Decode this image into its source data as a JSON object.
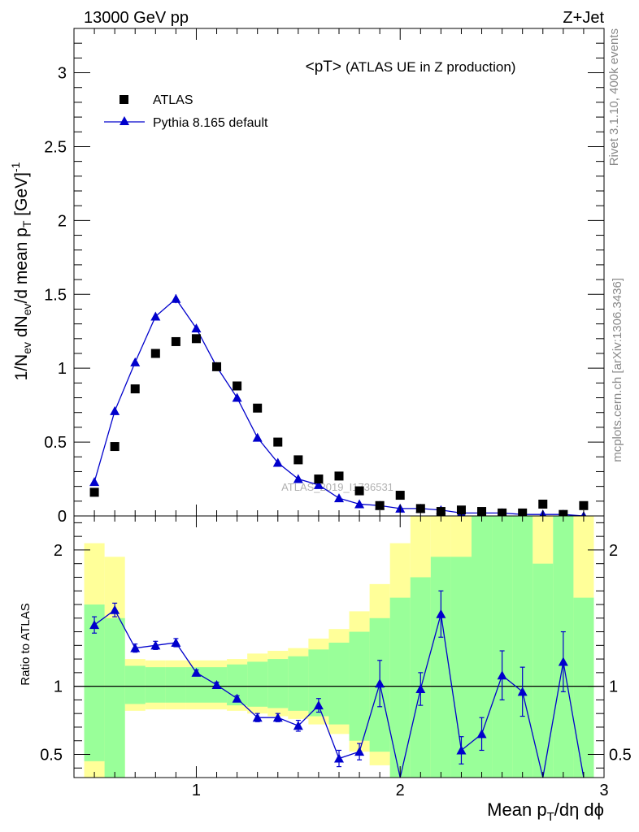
{
  "header": {
    "left": "13000 GeV pp",
    "right": "Z+Jet"
  },
  "side": {
    "rivet": "Rivet 3.1.10,  400k events",
    "mcplots": "mcplots.cern.ch [arXiv:1306.3436]"
  },
  "colors": {
    "mc": "#0000cc",
    "data": "#000000",
    "band_inner": "#99ff99",
    "band_outer": "#ffff99"
  },
  "chart_data": {
    "type": "scatter",
    "title": "<pT>",
    "subtitle": "(ATLAS UE in Z production)",
    "watermark": "ATLAS_2019_I1736531",
    "xlabel_parts": [
      "Mean p",
      "T",
      "/dη dϕ"
    ],
    "ylabel_parts": [
      "1/N",
      "ev",
      " dN",
      "ev",
      "/d mean p",
      "T",
      " [GeV]",
      "-1"
    ],
    "xlim": [
      0.4,
      3.0
    ],
    "ylim": [
      0,
      3.3
    ],
    "x_ticks": [
      "1",
      "2",
      "3"
    ],
    "y_ticks": [
      "0",
      "0.5",
      "1",
      "1.5",
      "2",
      "2.5",
      "3"
    ],
    "legend": {
      "position": "top-left",
      "entries": [
        "ATLAS",
        "Pythia 8.165 default"
      ]
    },
    "x": [
      0.5,
      0.6,
      0.7,
      0.8,
      0.9,
      1.0,
      1.1,
      1.2,
      1.3,
      1.4,
      1.5,
      1.6,
      1.7,
      1.8,
      1.9,
      2.0,
      2.1,
      2.2,
      2.3,
      2.4,
      2.5,
      2.6,
      2.7,
      2.8,
      2.9
    ],
    "series": [
      {
        "name": "ATLAS",
        "values": [
          0.16,
          0.47,
          0.86,
          1.1,
          1.18,
          1.2,
          1.01,
          0.88,
          0.73,
          0.5,
          0.38,
          0.25,
          0.27,
          0.17,
          0.07,
          0.14,
          0.05,
          0.03,
          0.04,
          0.03,
          0.02,
          0.02,
          0.08,
          0.01,
          0.07
        ]
      },
      {
        "name": "Pythia 8.165 default",
        "values": [
          0.23,
          0.71,
          1.04,
          1.35,
          1.47,
          1.27,
          1.01,
          0.8,
          0.53,
          0.36,
          0.25,
          0.21,
          0.12,
          0.08,
          0.07,
          0.05,
          0.05,
          0.04,
          0.02,
          0.02,
          0.02,
          0.01,
          0.01,
          0.01,
          0.0
        ],
        "errors": [
          0.02,
          0.02,
          0.02,
          0.02,
          0.03,
          0.02,
          0.02,
          0.01,
          0.01,
          0.01,
          0.01,
          0.01,
          0.01,
          0.005,
          0.005,
          0.005,
          0.005,
          0.005,
          0.005,
          0.005,
          0.005,
          0.005,
          0.005,
          0.005,
          0.0
        ]
      }
    ],
    "ratio": {
      "ylabel": "Ratio to ATLAS",
      "ylim": [
        0.33,
        2.25
      ],
      "y_ticks": [
        "0.5",
        "1",
        "2"
      ],
      "values": [
        1.45,
        1.56,
        1.28,
        1.3,
        1.32,
        1.1,
        1.01,
        0.91,
        0.77,
        0.77,
        0.71,
        0.86,
        0.47,
        0.52,
        1.02,
        0.33,
        0.98,
        1.53,
        0.53,
        0.65,
        1.08,
        0.96,
        0.33,
        1.18,
        0.33
      ],
      "errors": [
        0.06,
        0.05,
        0.03,
        0.03,
        0.03,
        0.02,
        0.02,
        0.02,
        0.03,
        0.03,
        0.04,
        0.05,
        0.06,
        0.06,
        0.17,
        0.0,
        0.12,
        0.17,
        0.1,
        0.12,
        0.18,
        0.18,
        0.0,
        0.22,
        0.0
      ],
      "band_inner": [
        [
          0.45,
          1.6
        ],
        [
          0.33,
          1.5
        ],
        [
          0.87,
          1.15
        ],
        [
          0.88,
          1.14
        ],
        [
          0.88,
          1.14
        ],
        [
          0.88,
          1.14
        ],
        [
          0.88,
          1.14
        ],
        [
          0.86,
          1.16
        ],
        [
          0.85,
          1.18
        ],
        [
          0.84,
          1.2
        ],
        [
          0.82,
          1.22
        ],
        [
          0.78,
          1.27
        ],
        [
          0.72,
          1.32
        ],
        [
          0.6,
          1.4
        ],
        [
          0.52,
          1.5
        ],
        [
          0.33,
          1.65
        ],
        [
          0.33,
          1.8
        ],
        [
          0.33,
          1.95
        ],
        [
          0.33,
          1.95
        ],
        [
          0.33,
          2.25
        ],
        [
          0.33,
          2.25
        ],
        [
          0.33,
          2.25
        ],
        [
          0.33,
          1.9
        ],
        [
          0.33,
          2.25
        ],
        [
          0.33,
          1.65
        ]
      ],
      "band_outer": [
        [
          0.33,
          2.05
        ],
        [
          0.33,
          1.95
        ],
        [
          0.82,
          1.2
        ],
        [
          0.83,
          1.19
        ],
        [
          0.83,
          1.19
        ],
        [
          0.83,
          1.19
        ],
        [
          0.83,
          1.19
        ],
        [
          0.82,
          1.2
        ],
        [
          0.8,
          1.24
        ],
        [
          0.78,
          1.26
        ],
        [
          0.76,
          1.28
        ],
        [
          0.72,
          1.35
        ],
        [
          0.65,
          1.42
        ],
        [
          0.52,
          1.55
        ],
        [
          0.42,
          1.75
        ],
        [
          0.33,
          2.05
        ],
        [
          0.33,
          2.25
        ],
        [
          0.33,
          2.25
        ],
        [
          0.33,
          2.25
        ],
        [
          0.33,
          2.25
        ],
        [
          0.33,
          2.25
        ],
        [
          0.33,
          2.25
        ],
        [
          0.33,
          2.25
        ],
        [
          0.33,
          2.25
        ],
        [
          0.33,
          2.25
        ]
      ]
    }
  }
}
